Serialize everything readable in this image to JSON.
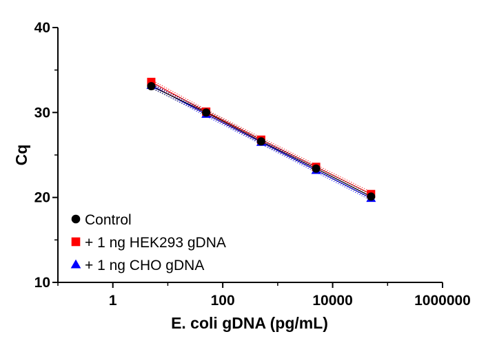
{
  "chart_data": {
    "type": "scatter",
    "xlabel": "E. coli gDNA (pg/mL)",
    "ylabel": "Cq",
    "xscale": "log",
    "xlim": [
      0.1,
      1000000
    ],
    "ylim": [
      10,
      40
    ],
    "x_ticks": [
      1,
      100,
      10000,
      1000000
    ],
    "x_tick_labels": [
      "1",
      "100",
      "10000",
      "1000000"
    ],
    "y_ticks": [
      10,
      20,
      30,
      40
    ],
    "y_tick_labels": [
      "10",
      "20",
      "30",
      "40"
    ],
    "legend_position": "bottom-left",
    "x": [
      5,
      50,
      500,
      5000,
      50000
    ],
    "series": [
      {
        "name": "+ 1 ng CHO gDNA",
        "marker": "triangle",
        "color": "#0000ff",
        "values": [
          33.2,
          29.8,
          26.5,
          23.2,
          19.9
        ]
      },
      {
        "name": "+ 1 ng HEK293 gDNA",
        "marker": "square",
        "color": "#ff0000",
        "values": [
          33.6,
          30.1,
          26.8,
          23.6,
          20.4
        ]
      },
      {
        "name": "Control",
        "marker": "circle",
        "color": "#000000",
        "values": [
          33.1,
          30.0,
          26.6,
          23.4,
          20.1
        ]
      }
    ],
    "legend_order": [
      "Control",
      "+ 1 ng HEK293 gDNA",
      "+ 1 ng CHO gDNA"
    ]
  }
}
